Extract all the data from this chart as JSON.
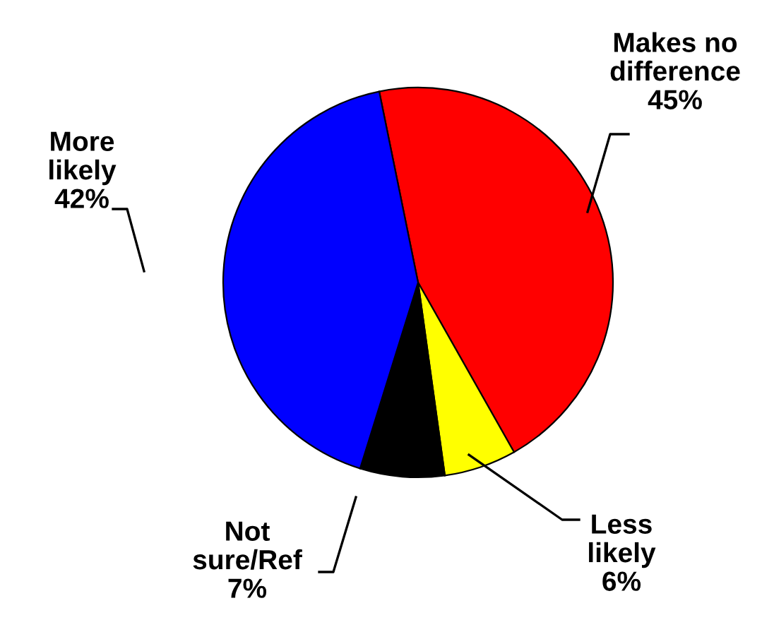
{
  "chart_data": {
    "type": "pie",
    "categories": [
      "Makes no\ndifference",
      "Less\nlikely",
      "Not\nsure/Ref",
      "More\nlikely"
    ],
    "values": [
      45,
      6,
      7,
      42
    ],
    "colors": [
      "#ff0000",
      "#ffff00",
      "#000000",
      "#0000ff"
    ],
    "value_labels": [
      "45%",
      "6%",
      "7%",
      "42%"
    ]
  }
}
